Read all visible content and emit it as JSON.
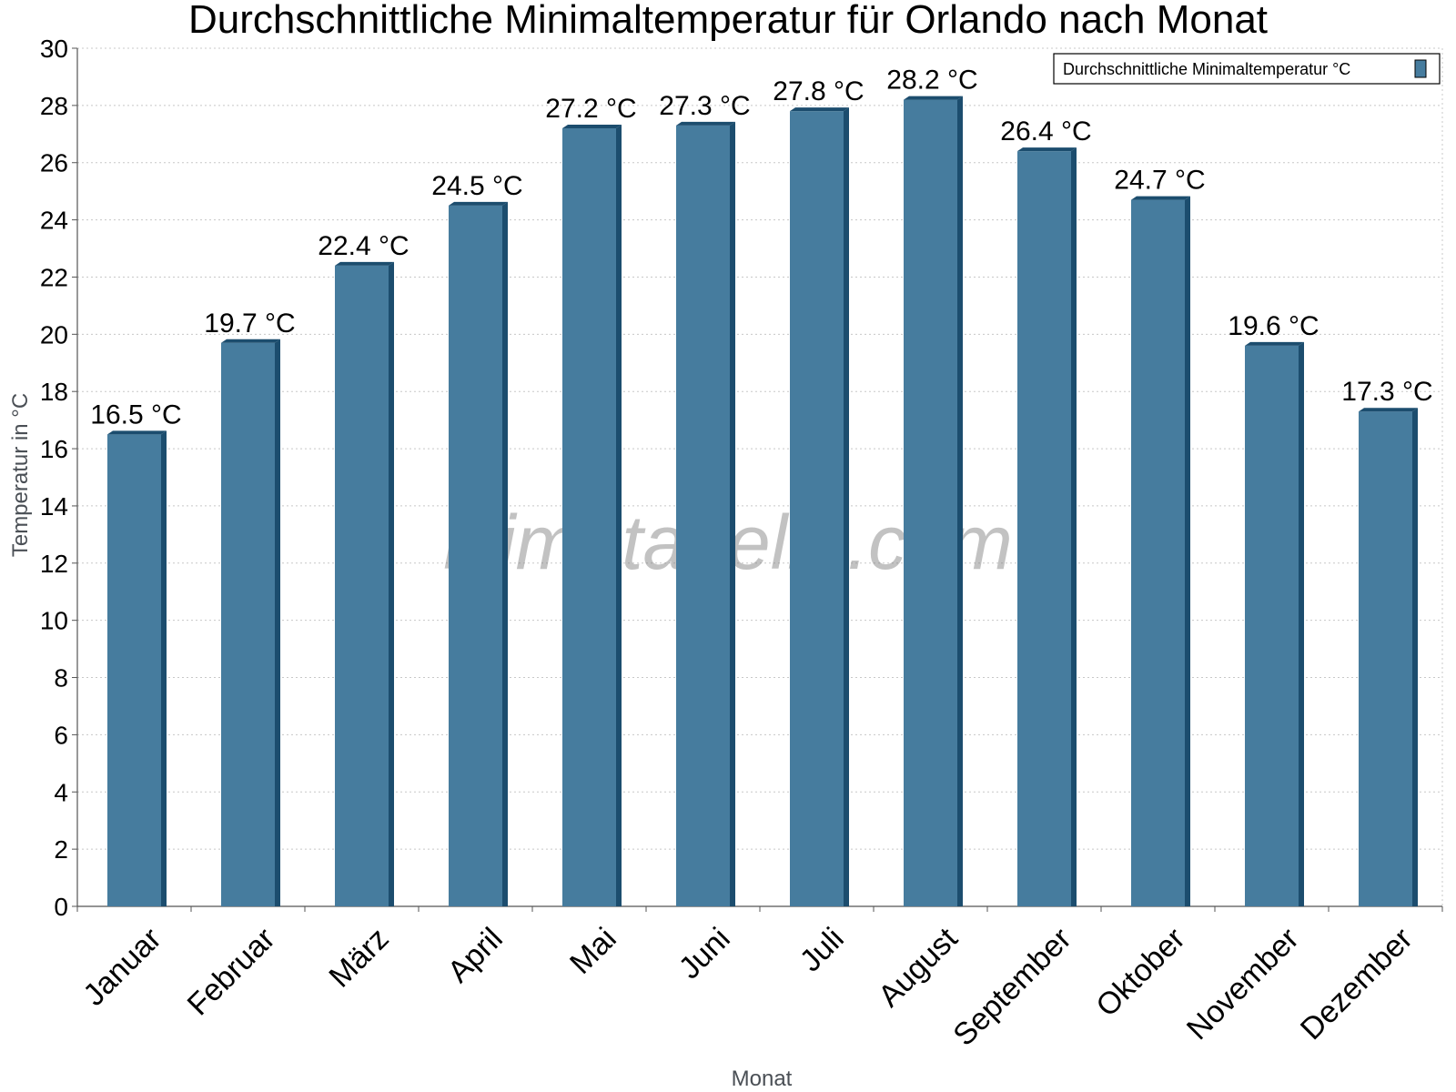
{
  "chart_data": {
    "type": "bar",
    "title": "Durchschnittliche Minimaltemperatur für Orlando nach Monat",
    "xlabel": "Monat",
    "ylabel": "Temperatur in °C",
    "categories": [
      "Januar",
      "Februar",
      "März",
      "April",
      "Mai",
      "Juni",
      "Juli",
      "August",
      "September",
      "Oktober",
      "November",
      "Dezember"
    ],
    "series": [
      {
        "name": "Durchschnittliche Minimaltemperatur °C",
        "values": [
          16.5,
          19.7,
          22.4,
          24.5,
          27.2,
          27.3,
          27.8,
          28.2,
          26.4,
          24.7,
          19.6,
          17.3
        ]
      }
    ],
    "data_labels": [
      "16.5 °C",
      "19.7 °C",
      "22.4 °C",
      "24.5 °C",
      "27.2 °C",
      "27.3 °C",
      "27.8 °C",
      "28.2 °C",
      "26.4 °C",
      "24.7 °C",
      "19.6 °C",
      "17.3 °C"
    ],
    "y_ticks": [
      "0",
      "2",
      "4",
      "6",
      "8",
      "10",
      "12",
      "14",
      "16",
      "18",
      "20",
      "22",
      "24",
      "26",
      "28",
      "30"
    ],
    "ylim": [
      0,
      30
    ],
    "grid": true,
    "legend_position": "top-right",
    "watermark": "klimatabelle.com",
    "colors": {
      "bar": "#467c9e",
      "bar_dark": "#1c4d6e",
      "grid": "#c8c8c8",
      "axis": "#555555"
    }
  }
}
